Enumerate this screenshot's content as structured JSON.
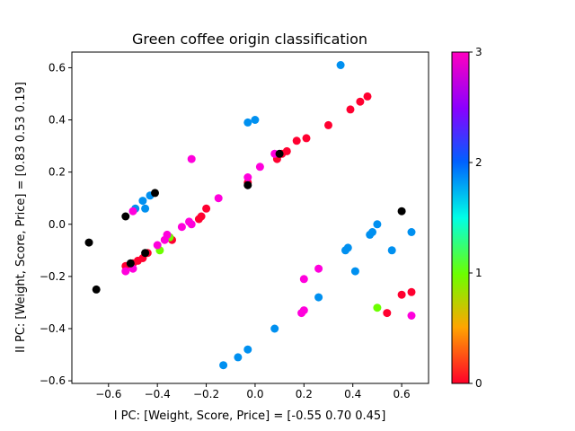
{
  "chart_data": {
    "type": "scatter",
    "title": "Green coffee origin classification",
    "xlabel": "I PC: [Weight, Score, Price] = [-0.55  0.70  0.45]",
    "ylabel": "II PC: [Weight, Score, Price] = [0.83 0.53 0.19]",
    "xlim": [
      -0.75,
      0.71
    ],
    "ylim": [
      -0.61,
      0.66
    ],
    "xticks": [
      -0.6,
      -0.4,
      -0.2,
      0.0,
      0.2,
      0.4,
      0.6
    ],
    "xtick_labels": [
      "−0.6",
      "−0.4",
      "−0.2",
      "0.0",
      "0.2",
      "0.4",
      "0.6"
    ],
    "yticks": [
      -0.6,
      -0.4,
      -0.2,
      0.0,
      0.2,
      0.4,
      0.6
    ],
    "ytick_labels": [
      "−0.6",
      "−0.4",
      "−0.2",
      "0.0",
      "0.2",
      "0.4",
      "0.6"
    ],
    "colorbar": {
      "colormap": "gist_rainbow",
      "range": [
        0,
        3
      ],
      "ticks": [
        0,
        1,
        2,
        3
      ],
      "tick_labels": [
        "0",
        "1",
        "2",
        "3"
      ]
    },
    "series": [
      {
        "color": "#ff0030",
        "points": [
          [
            -0.53,
            -0.16
          ],
          [
            -0.5,
            -0.15
          ],
          [
            -0.48,
            -0.14
          ],
          [
            -0.46,
            -0.13
          ],
          [
            -0.44,
            -0.11
          ],
          [
            -0.35,
            -0.05
          ],
          [
            -0.34,
            -0.06
          ],
          [
            -0.23,
            0.02
          ],
          [
            -0.22,
            0.03
          ],
          [
            -0.2,
            0.06
          ],
          [
            -0.03,
            0.16
          ],
          [
            0.09,
            0.25
          ],
          [
            0.11,
            0.27
          ],
          [
            0.13,
            0.28
          ],
          [
            0.17,
            0.32
          ],
          [
            0.21,
            0.33
          ],
          [
            0.3,
            0.38
          ],
          [
            0.39,
            0.44
          ],
          [
            0.43,
            0.47
          ],
          [
            0.46,
            0.49
          ],
          [
            0.6,
            -0.27
          ],
          [
            0.64,
            -0.26
          ],
          [
            0.54,
            -0.34
          ]
        ]
      },
      {
        "color": "#6cff00",
        "points": [
          [
            -0.35,
            -0.05
          ],
          [
            -0.39,
            -0.1
          ],
          [
            0.5,
            -0.32
          ]
        ]
      },
      {
        "color": "#0090f0",
        "points": [
          [
            -0.49,
            0.06
          ],
          [
            -0.46,
            0.09
          ],
          [
            -0.45,
            0.06
          ],
          [
            -0.43,
            0.11
          ],
          [
            -0.03,
            0.39
          ],
          [
            0.0,
            0.4
          ],
          [
            0.35,
            0.61
          ],
          [
            0.47,
            -0.04
          ],
          [
            0.48,
            -0.03
          ],
          [
            0.5,
            0.0
          ],
          [
            0.56,
            -0.1
          ],
          [
            0.64,
            -0.03
          ],
          [
            0.37,
            -0.1
          ],
          [
            0.38,
            -0.09
          ],
          [
            0.41,
            -0.18
          ],
          [
            0.26,
            -0.28
          ],
          [
            0.08,
            -0.4
          ],
          [
            -0.03,
            -0.48
          ],
          [
            -0.07,
            -0.51
          ],
          [
            -0.13,
            -0.54
          ]
        ]
      },
      {
        "color": "#ff00dc",
        "points": [
          [
            -0.53,
            -0.18
          ],
          [
            -0.5,
            -0.17
          ],
          [
            -0.5,
            0.05
          ],
          [
            -0.4,
            -0.08
          ],
          [
            -0.37,
            -0.06
          ],
          [
            -0.36,
            -0.04
          ],
          [
            -0.3,
            -0.01
          ],
          [
            -0.27,
            0.01
          ],
          [
            -0.26,
            0.0
          ],
          [
            -0.26,
            0.25
          ],
          [
            -0.15,
            0.1
          ],
          [
            -0.03,
            0.18
          ],
          [
            0.02,
            0.22
          ],
          [
            0.08,
            0.27
          ],
          [
            0.26,
            -0.17
          ],
          [
            0.2,
            -0.21
          ],
          [
            0.19,
            -0.34
          ],
          [
            0.2,
            -0.33
          ],
          [
            0.64,
            -0.35
          ]
        ]
      },
      {
        "color": "#000000",
        "points": [
          [
            -0.68,
            -0.07
          ],
          [
            -0.65,
            -0.25
          ],
          [
            -0.53,
            0.03
          ],
          [
            -0.51,
            -0.15
          ],
          [
            -0.45,
            -0.11
          ],
          [
            -0.41,
            0.12
          ],
          [
            -0.03,
            0.15
          ],
          [
            0.1,
            0.27
          ],
          [
            0.6,
            0.05
          ]
        ]
      }
    ]
  }
}
